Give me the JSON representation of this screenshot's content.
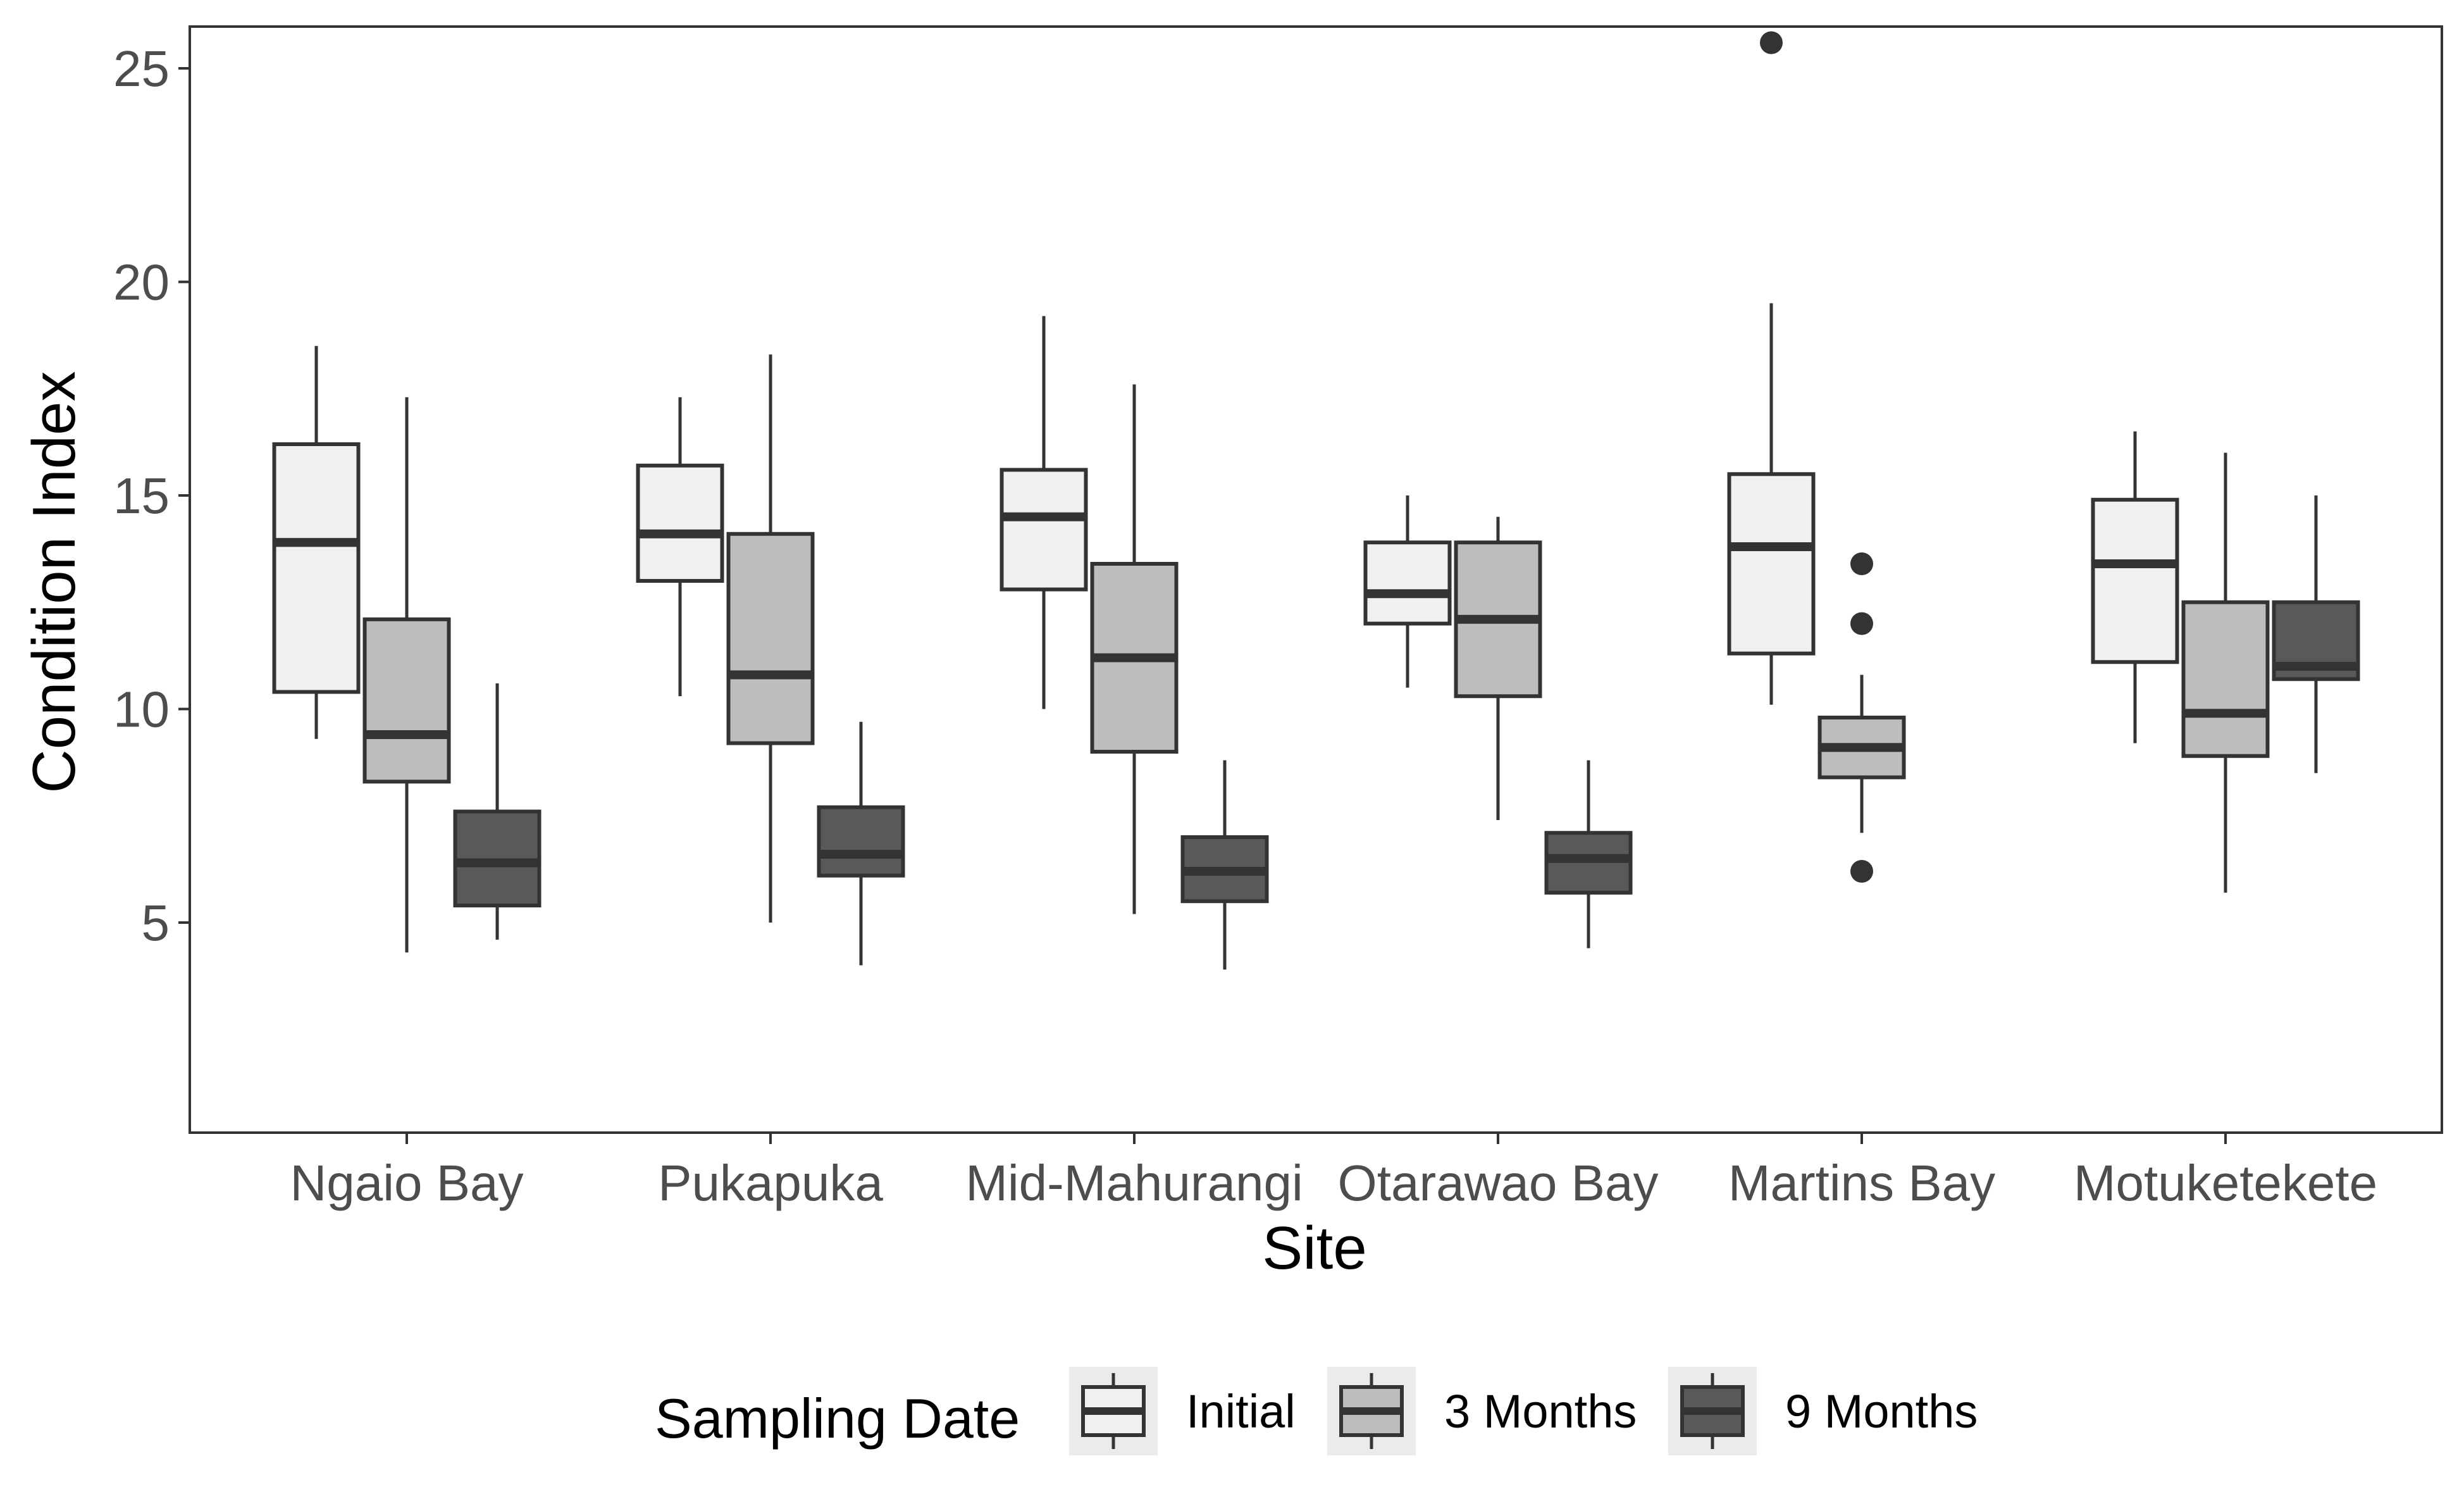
{
  "chart_data": {
    "type": "boxplot",
    "xlabel": "Site",
    "ylabel": "Condition Index",
    "ylim": [
      0,
      26
    ],
    "yticks": [
      5,
      10,
      15,
      20,
      25
    ],
    "grid": false,
    "categories": [
      "Ngaio Bay",
      "Pukapuka",
      "Mid-Mahurangi",
      "Otarawao Bay",
      "Martins Bay",
      "Motuketekete"
    ],
    "legend": {
      "title": "Sampling Date",
      "position": "bottom"
    },
    "series": [
      {
        "name": "Initial",
        "fill": "#f0f0f0",
        "boxes": [
          {
            "whisker_low": 9.3,
            "q1": 10.4,
            "median": 13.9,
            "q3": 16.2,
            "whisker_high": 18.5,
            "outliers": []
          },
          {
            "whisker_low": 10.3,
            "q1": 13.0,
            "median": 14.1,
            "q3": 15.7,
            "whisker_high": 17.3,
            "outliers": []
          },
          {
            "whisker_low": 10.0,
            "q1": 12.8,
            "median": 14.5,
            "q3": 15.6,
            "whisker_high": 19.2,
            "outliers": []
          },
          {
            "whisker_low": 10.5,
            "q1": 12.0,
            "median": 12.7,
            "q3": 13.9,
            "whisker_high": 15.0,
            "outliers": []
          },
          {
            "whisker_low": 10.1,
            "q1": 11.3,
            "median": 13.8,
            "q3": 15.5,
            "whisker_high": 19.5,
            "outliers": [
              25.6
            ]
          },
          {
            "whisker_low": 9.2,
            "q1": 11.1,
            "median": 13.4,
            "q3": 14.9,
            "whisker_high": 16.5,
            "outliers": []
          }
        ]
      },
      {
        "name": "3 Months",
        "fill": "#bdbdbd",
        "boxes": [
          {
            "whisker_low": 4.3,
            "q1": 8.3,
            "median": 9.4,
            "q3": 12.1,
            "whisker_high": 17.3,
            "outliers": []
          },
          {
            "whisker_low": 5.0,
            "q1": 9.2,
            "median": 10.8,
            "q3": 14.1,
            "whisker_high": 18.3,
            "outliers": []
          },
          {
            "whisker_low": 5.2,
            "q1": 9.0,
            "median": 11.2,
            "q3": 13.4,
            "whisker_high": 17.6,
            "outliers": []
          },
          {
            "whisker_low": 7.4,
            "q1": 10.3,
            "median": 12.1,
            "q3": 13.9,
            "whisker_high": 14.5,
            "outliers": []
          },
          {
            "whisker_low": 7.1,
            "q1": 8.4,
            "median": 9.1,
            "q3": 9.8,
            "whisker_high": 10.8,
            "outliers": [
              13.4,
              12.0,
              6.2
            ]
          },
          {
            "whisker_low": 5.7,
            "q1": 8.9,
            "median": 9.9,
            "q3": 12.5,
            "whisker_high": 16.0,
            "outliers": []
          }
        ]
      },
      {
        "name": "9 Months",
        "fill": "#595959",
        "boxes": [
          {
            "whisker_low": 4.6,
            "q1": 5.4,
            "median": 6.4,
            "q3": 7.6,
            "whisker_high": 10.6,
            "outliers": []
          },
          {
            "whisker_low": 4.0,
            "q1": 6.1,
            "median": 6.6,
            "q3": 7.7,
            "whisker_high": 9.7,
            "outliers": []
          },
          {
            "whisker_low": 3.9,
            "q1": 5.5,
            "median": 6.2,
            "q3": 7.0,
            "whisker_high": 8.8,
            "outliers": []
          },
          {
            "whisker_low": 4.4,
            "q1": 5.7,
            "median": 6.5,
            "q3": 7.1,
            "whisker_high": 8.8,
            "outliers": []
          },
          null,
          {
            "whisker_low": 8.5,
            "q1": 10.7,
            "median": 11.0,
            "q3": 12.5,
            "whisker_high": 15.0,
            "outliers": []
          }
        ]
      }
    ]
  }
}
